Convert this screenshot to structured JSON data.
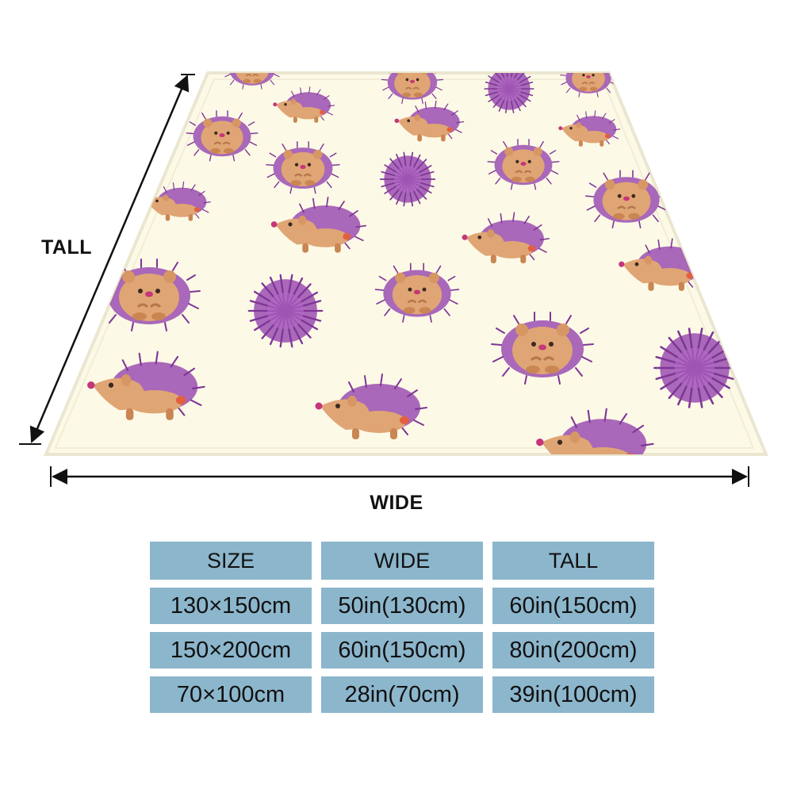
{
  "dimension_labels": {
    "tall": "TALL",
    "wide": "WIDE"
  },
  "size_table": {
    "headers": [
      "SIZE",
      "WIDE",
      "TALL"
    ],
    "rows": [
      [
        "130×150cm",
        "50in(130cm)",
        "60in(150cm)"
      ],
      [
        "150×200cm",
        "60in(150cm)",
        "80in(200cm)"
      ],
      [
        "70×100cm",
        "28in(70cm)",
        "39in(100cm)"
      ]
    ]
  },
  "colors": {
    "blanket_background": "#fcf9e6",
    "blanket_border": "#eae6d0",
    "table_cell": "#8cb6cc",
    "hedgehog_spines": "#9a4fb0",
    "hedgehog_body": "#e0a574",
    "arrow": "#111111"
  },
  "pattern": {
    "motif": "watercolor hedgehogs",
    "icon_names": [
      "hedgehog-sitting-icon",
      "hedgehog-walking-icon",
      "hedgehog-ball-icon"
    ]
  }
}
